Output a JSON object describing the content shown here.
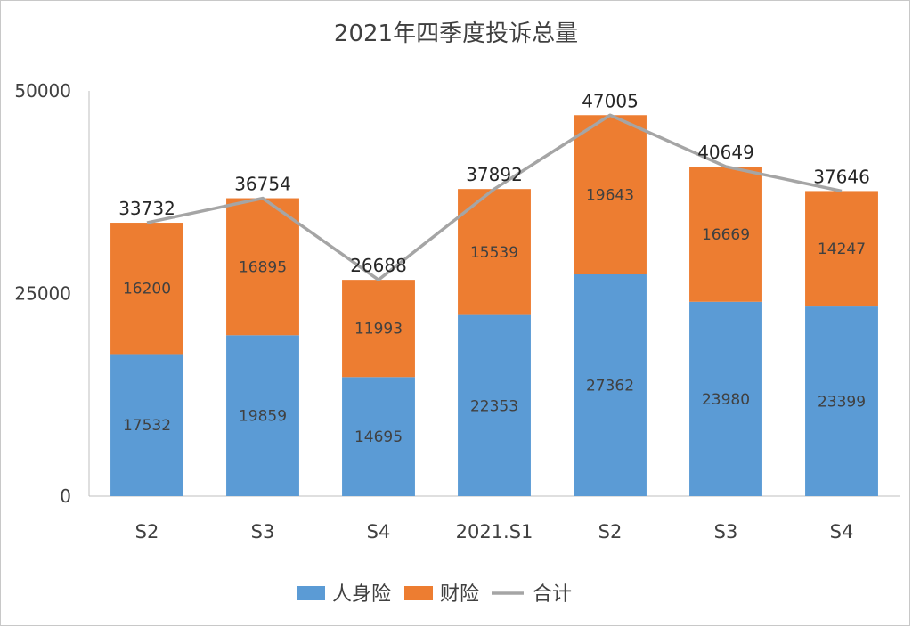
{
  "chart_data": {
    "type": "bar",
    "stacked": true,
    "title": "2021年四季度投诉总量",
    "categories": [
      "S2",
      "S3",
      "S4",
      "2021.S1",
      "S2",
      "S3",
      "S4"
    ],
    "series": [
      {
        "name": "人身险",
        "color": "#5B9BD5",
        "values": [
          17532,
          19859,
          14695,
          22353,
          27362,
          23980,
          23399
        ]
      },
      {
        "name": "财险",
        "color": "#ED7D31",
        "values": [
          16200,
          16895,
          11993,
          15539,
          19643,
          16669,
          14247
        ]
      }
    ],
    "line_series": {
      "name": "合计",
      "color": "#A5A5A5",
      "values": [
        33732,
        36754,
        26688,
        37892,
        47005,
        40649,
        37646
      ]
    },
    "ylim": [
      0,
      50000
    ],
    "yticks": [
      0,
      25000,
      50000
    ],
    "yticks_labels": [
      "0",
      "25000",
      "50000"
    ],
    "grid": false,
    "legend_position": "bottom"
  }
}
